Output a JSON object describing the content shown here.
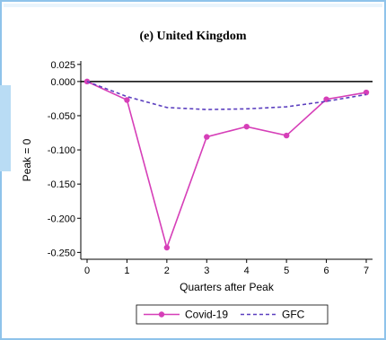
{
  "chart_data": {
    "type": "line",
    "title": "(e) United Kingdom",
    "xlabel": "Quarters after Peak",
    "ylabel": "Peak = 0",
    "x": [
      0,
      1,
      2,
      3,
      4,
      5,
      6,
      7
    ],
    "xlim": [
      0,
      7
    ],
    "ylim": [
      -0.26,
      0.03
    ],
    "yticks": [
      0.025,
      0.0,
      -0.05,
      -0.1,
      -0.15,
      -0.2,
      -0.25
    ],
    "ytick_labels": [
      "0.025",
      "0.000",
      "-0.050",
      "-0.100",
      "-0.150",
      "-0.200",
      "-0.250"
    ],
    "xtick_labels": [
      "0",
      "1",
      "2",
      "3",
      "4",
      "5",
      "6",
      "7"
    ],
    "reference_line": 0,
    "series": [
      {
        "name": "Covid-19",
        "values": [
          0.0,
          -0.027,
          -0.243,
          -0.081,
          -0.066,
          -0.079,
          -0.026,
          -0.016
        ],
        "color": "#d63fb8",
        "style": "solid-markers"
      },
      {
        "name": "GFC",
        "values": [
          0.0,
          -0.022,
          -0.038,
          -0.041,
          -0.04,
          -0.037,
          -0.029,
          -0.019
        ],
        "color": "#5b3fbf",
        "style": "dashed"
      }
    ],
    "legend": "bottom",
    "grid": false
  }
}
